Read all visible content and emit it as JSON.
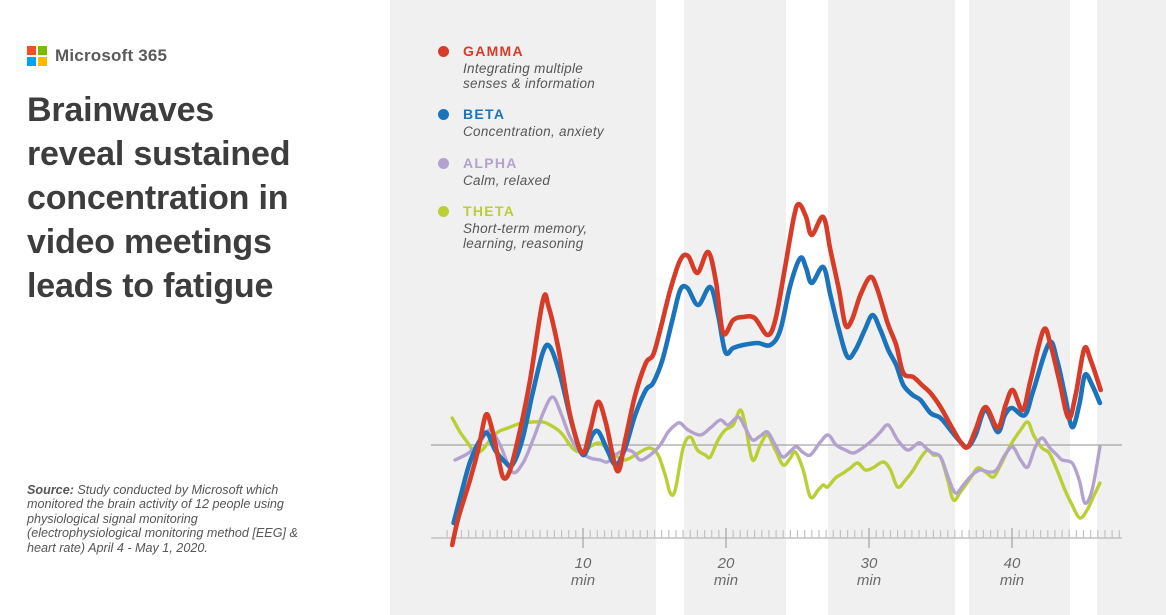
{
  "brand": {
    "name": "Microsoft 365",
    "logo_colors": [
      "#f25022",
      "#7fba00",
      "#00a4ef",
      "#ffb900"
    ]
  },
  "headline": "Brainwaves\nreveal sustained\nconcentration in\nvideo meetings\nleads to fatigue",
  "source": {
    "label": "Source:",
    "text": " Study conducted by Microsoft which monitored the brain activity of 12 people using physiological signal monitoring (electrophysiological monitoring method [EEG] & heart rate) April 4 - May 1, 2020."
  },
  "legend": [
    {
      "id": "gamma",
      "name": "GAMMA",
      "desc": "Integrating multiple\nsenses & information",
      "color": "#d63c27"
    },
    {
      "id": "beta",
      "name": "BETA",
      "desc": "Concentration, anxiety",
      "color": "#1b74bb"
    },
    {
      "id": "alpha",
      "name": "ALPHA",
      "desc": "Calm, relaxed",
      "color": "#b3a2ce"
    },
    {
      "id": "theta",
      "name": "THETA",
      "desc": "Short-term memory,\nlearning, reasoning",
      "color": "#b9cf35"
    }
  ],
  "chart_data": {
    "type": "line",
    "x_unit": "min",
    "x_range": [
      0,
      47.5
    ],
    "major_ticks": [
      10,
      20,
      30,
      40
    ],
    "minor_tick_step_min": 0.5,
    "baseline_value": 0,
    "note": "y values are activity relative to resting baseline (px-equivalent units read from figure)",
    "series": [
      {
        "id": "gamma",
        "name": "GAMMA",
        "points": [
          [
            0.85,
            -100
          ],
          [
            1.3,
            -72
          ],
          [
            2.1,
            -35
          ],
          [
            2.7,
            -3
          ],
          [
            3.2,
            30
          ],
          [
            3.6,
            18
          ],
          [
            4.1,
            -15
          ],
          [
            4.45,
            -33
          ],
          [
            4.9,
            -25
          ],
          [
            5.6,
            15
          ],
          [
            6.3,
            65
          ],
          [
            7.2,
            145
          ],
          [
            7.6,
            138
          ],
          [
            8.3,
            95
          ],
          [
            9.1,
            30
          ],
          [
            9.95,
            -8
          ],
          [
            10.5,
            15
          ],
          [
            11.05,
            43
          ],
          [
            11.6,
            22
          ],
          [
            12.4,
            -26
          ],
          [
            12.95,
            5
          ],
          [
            13.65,
            50
          ],
          [
            14.4,
            82
          ],
          [
            14.9,
            90
          ],
          [
            15.4,
            115
          ],
          [
            16.1,
            155
          ],
          [
            16.8,
            185
          ],
          [
            17.35,
            189
          ],
          [
            18,
            172
          ],
          [
            18.75,
            193
          ],
          [
            19.3,
            163
          ],
          [
            19.8,
            112
          ],
          [
            20.5,
            125
          ],
          [
            21.2,
            128
          ],
          [
            22,
            127
          ],
          [
            22.9,
            110
          ],
          [
            23.45,
            125
          ],
          [
            24.1,
            175
          ],
          [
            24.75,
            228
          ],
          [
            25.1,
            241
          ],
          [
            25.6,
            228
          ],
          [
            26,
            210
          ],
          [
            26.8,
            228
          ],
          [
            27.3,
            195
          ],
          [
            27.9,
            155
          ],
          [
            28.35,
            120
          ],
          [
            28.8,
            125
          ],
          [
            29.4,
            150
          ],
          [
            30.1,
            168
          ],
          [
            30.6,
            155
          ],
          [
            31.3,
            122
          ],
          [
            31.9,
            100
          ],
          [
            32.4,
            72
          ],
          [
            33.1,
            68
          ],
          [
            33.7,
            60
          ],
          [
            34.3,
            52
          ],
          [
            35,
            38
          ],
          [
            35.7,
            20
          ],
          [
            36.4,
            3
          ],
          [
            36.9,
            -2
          ],
          [
            37.45,
            15
          ],
          [
            38.15,
            38
          ],
          [
            39,
            17
          ],
          [
            39.55,
            40
          ],
          [
            40.05,
            55
          ],
          [
            40.75,
            35
          ],
          [
            41.3,
            65
          ],
          [
            42.2,
            115
          ],
          [
            42.7,
            100
          ],
          [
            43.3,
            65
          ],
          [
            43.95,
            27
          ],
          [
            44.45,
            50
          ],
          [
            45.05,
            96
          ],
          [
            45.5,
            85
          ],
          [
            46.2,
            55
          ]
        ]
      },
      {
        "id": "beta",
        "name": "BETA",
        "points": [
          [
            0.95,
            -78
          ],
          [
            1.55,
            -45
          ],
          [
            2.1,
            -17
          ],
          [
            2.8,
            5
          ],
          [
            3.3,
            12
          ],
          [
            3.85,
            -5
          ],
          [
            4.55,
            -17
          ],
          [
            5.05,
            -20
          ],
          [
            5.75,
            5
          ],
          [
            6.45,
            50
          ],
          [
            7.2,
            93
          ],
          [
            7.7,
            98
          ],
          [
            8.4,
            70
          ],
          [
            9.25,
            20
          ],
          [
            10,
            -10
          ],
          [
            10.65,
            10
          ],
          [
            11.1,
            13
          ],
          [
            11.7,
            -5
          ],
          [
            12.3,
            -20
          ],
          [
            12.95,
            -3
          ],
          [
            13.65,
            30
          ],
          [
            14.4,
            55
          ],
          [
            14.9,
            62
          ],
          [
            15.55,
            85
          ],
          [
            16.25,
            125
          ],
          [
            16.8,
            155
          ],
          [
            17.3,
            157
          ],
          [
            18.05,
            140
          ],
          [
            18.9,
            158
          ],
          [
            19.45,
            130
          ],
          [
            19.95,
            93
          ],
          [
            20.5,
            97
          ],
          [
            21.2,
            100
          ],
          [
            22.2,
            102
          ],
          [
            23.1,
            100
          ],
          [
            23.8,
            115
          ],
          [
            24.5,
            160
          ],
          [
            25.2,
            187
          ],
          [
            25.6,
            177
          ],
          [
            26,
            162
          ],
          [
            26.8,
            178
          ],
          [
            27.3,
            150
          ],
          [
            27.9,
            115
          ],
          [
            28.5,
            88
          ],
          [
            29.05,
            95
          ],
          [
            29.7,
            115
          ],
          [
            30.25,
            130
          ],
          [
            30.8,
            115
          ],
          [
            31.35,
            95
          ],
          [
            31.9,
            80
          ],
          [
            32.4,
            60
          ],
          [
            33.05,
            50
          ],
          [
            33.6,
            45
          ],
          [
            34.3,
            32
          ],
          [
            35,
            27
          ],
          [
            35.7,
            15
          ],
          [
            36.4,
            3
          ],
          [
            36.9,
            -2
          ],
          [
            37.45,
            10
          ],
          [
            38.15,
            35
          ],
          [
            39,
            13
          ],
          [
            39.5,
            30
          ],
          [
            40,
            37
          ],
          [
            40.9,
            30
          ],
          [
            41.5,
            55
          ],
          [
            42.6,
            102
          ],
          [
            43.15,
            85
          ],
          [
            43.7,
            50
          ],
          [
            44.2,
            18
          ],
          [
            44.7,
            40
          ],
          [
            45.1,
            70
          ],
          [
            45.6,
            60
          ],
          [
            46.15,
            42
          ]
        ]
      },
      {
        "id": "alpha",
        "name": "ALPHA",
        "points": [
          [
            1.05,
            -15
          ],
          [
            2,
            -8
          ],
          [
            2.8,
            3
          ],
          [
            3.5,
            15
          ],
          [
            4.2,
            0
          ],
          [
            5.05,
            -27
          ],
          [
            5.8,
            -18
          ],
          [
            6.5,
            5
          ],
          [
            7.3,
            35
          ],
          [
            7.9,
            48
          ],
          [
            8.5,
            30
          ],
          [
            9.1,
            8
          ],
          [
            9.8,
            -7
          ],
          [
            10.5,
            -13
          ],
          [
            11.2,
            -15
          ],
          [
            11.7,
            -17
          ],
          [
            12.25,
            -10
          ],
          [
            12.95,
            -5
          ],
          [
            13.5,
            -7
          ],
          [
            14,
            -15
          ],
          [
            14.7,
            -10
          ],
          [
            15.4,
            0
          ],
          [
            15.95,
            13
          ],
          [
            16.45,
            20
          ],
          [
            16.8,
            22
          ],
          [
            17.35,
            15
          ],
          [
            18.2,
            10
          ],
          [
            18.9,
            17
          ],
          [
            19.6,
            25
          ],
          [
            20.15,
            20
          ],
          [
            20.85,
            28
          ],
          [
            21.35,
            17
          ],
          [
            21.85,
            5
          ],
          [
            22.4,
            9
          ],
          [
            22.9,
            13
          ],
          [
            23.45,
            0
          ],
          [
            24,
            -12
          ],
          [
            24.85,
            -2
          ],
          [
            25.35,
            -7
          ],
          [
            25.9,
            -10
          ],
          [
            26.6,
            3
          ],
          [
            27.15,
            10
          ],
          [
            27.7,
            0
          ],
          [
            28.35,
            -5
          ],
          [
            28.9,
            -8
          ],
          [
            29.55,
            -3
          ],
          [
            30.25,
            5
          ],
          [
            30.8,
            13
          ],
          [
            31.35,
            20
          ],
          [
            32,
            5
          ],
          [
            32.7,
            -5
          ],
          [
            33.25,
            0
          ],
          [
            33.6,
            2
          ],
          [
            34.3,
            -7
          ],
          [
            35,
            -12
          ],
          [
            35.55,
            -33
          ],
          [
            36.05,
            -48
          ],
          [
            36.6,
            -40
          ],
          [
            37.2,
            -30
          ],
          [
            37.8,
            -25
          ],
          [
            38.35,
            -27
          ],
          [
            38.9,
            -25
          ],
          [
            39.5,
            -10
          ],
          [
            40.05,
            -2
          ],
          [
            40.6,
            -15
          ],
          [
            41.1,
            -22
          ],
          [
            41.6,
            -3
          ],
          [
            42.1,
            7
          ],
          [
            42.65,
            -3
          ],
          [
            43.15,
            -10
          ],
          [
            43.5,
            -15
          ],
          [
            44.2,
            -18
          ],
          [
            44.7,
            -35
          ],
          [
            45.1,
            -58
          ],
          [
            45.6,
            -45
          ],
          [
            46.15,
            -2
          ]
        ]
      },
      {
        "id": "theta",
        "name": "THETA",
        "points": [
          [
            0.85,
            27
          ],
          [
            1.4,
            13
          ],
          [
            1.95,
            2
          ],
          [
            2.45,
            -8
          ],
          [
            2.95,
            -5
          ],
          [
            3.5,
            5
          ],
          [
            4.05,
            13
          ],
          [
            4.75,
            17
          ],
          [
            5.45,
            21
          ],
          [
            5.8,
            22
          ],
          [
            6.45,
            23
          ],
          [
            7.2,
            23
          ],
          [
            7.7,
            20
          ],
          [
            8.25,
            15
          ],
          [
            8.6,
            10
          ],
          [
            9.25,
            -3
          ],
          [
            9.8,
            -7
          ],
          [
            10.35,
            -3
          ],
          [
            11.05,
            2
          ],
          [
            11.7,
            -3
          ],
          [
            12.25,
            -10
          ],
          [
            12.8,
            -15
          ],
          [
            13.3,
            -13
          ],
          [
            14,
            -7
          ],
          [
            14.7,
            -3
          ],
          [
            15.25,
            -10
          ],
          [
            15.75,
            -30
          ],
          [
            16.1,
            -48
          ],
          [
            16.45,
            -45
          ],
          [
            17,
            -3
          ],
          [
            17.5,
            8
          ],
          [
            18,
            -5
          ],
          [
            18.55,
            -10
          ],
          [
            18.9,
            -12
          ],
          [
            19.45,
            5
          ],
          [
            19.95,
            15
          ],
          [
            20.5,
            20
          ],
          [
            21,
            35
          ],
          [
            21.35,
            20
          ],
          [
            21.85,
            -15
          ],
          [
            22.4,
            0
          ],
          [
            22.9,
            10
          ],
          [
            23.45,
            -5
          ],
          [
            24,
            -20
          ],
          [
            24.5,
            -13
          ],
          [
            24.85,
            -7
          ],
          [
            25.4,
            -25
          ],
          [
            25.9,
            -52
          ],
          [
            26.45,
            -45
          ],
          [
            26.8,
            -40
          ],
          [
            27.1,
            -42
          ],
          [
            27.65,
            -33
          ],
          [
            28.2,
            -28
          ],
          [
            28.7,
            -23
          ],
          [
            29.2,
            -18
          ],
          [
            29.75,
            -25
          ],
          [
            30.25,
            -23
          ],
          [
            31,
            -17
          ],
          [
            31.5,
            -25
          ],
          [
            32,
            -42
          ],
          [
            32.55,
            -35
          ],
          [
            33.1,
            -25
          ],
          [
            33.6,
            -13
          ],
          [
            34.1,
            -5
          ],
          [
            34.5,
            -10
          ],
          [
            35,
            -12
          ],
          [
            35.5,
            -35
          ],
          [
            35.9,
            -55
          ],
          [
            36.4,
            -47
          ],
          [
            37.1,
            -33
          ],
          [
            37.6,
            -23
          ],
          [
            38.15,
            -27
          ],
          [
            38.7,
            -32
          ],
          [
            39.2,
            -20
          ],
          [
            39.9,
            0
          ],
          [
            40.6,
            15
          ],
          [
            41.1,
            23
          ],
          [
            41.5,
            10
          ],
          [
            42.1,
            -3
          ],
          [
            42.6,
            -8
          ],
          [
            43.15,
            -25
          ],
          [
            43.7,
            -45
          ],
          [
            44.2,
            -60
          ],
          [
            44.75,
            -73
          ],
          [
            45.25,
            -65
          ],
          [
            45.75,
            -50
          ],
          [
            46.15,
            -38
          ]
        ]
      }
    ]
  }
}
